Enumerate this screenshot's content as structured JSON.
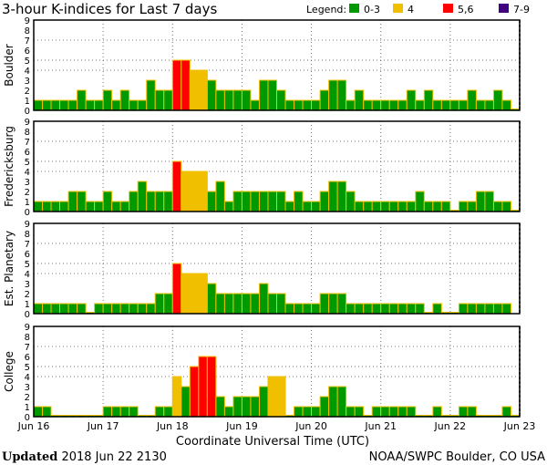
{
  "chart_data": {
    "type": "bar",
    "title": "3-hour K-indices for Last 7 days",
    "xlabel": "Coordinate Universal Time (UTC)",
    "ylim": [
      0,
      9
    ],
    "yticks": [
      "0",
      "1",
      "2",
      "3",
      "4",
      "5",
      "6",
      "7",
      "8",
      "9"
    ],
    "xticks": [
      "Jun 16",
      "Jun 17",
      "Jun 18",
      "Jun 19",
      "Jun 20",
      "Jun 21",
      "Jun 22",
      "Jun 23"
    ],
    "bars_per_day": 8,
    "grid_levels": [
      4,
      5,
      7
    ],
    "legend": {
      "label": "Legend:",
      "placement": "top-right",
      "items": [
        {
          "label": "0-3",
          "color": "#009900"
        },
        {
          "label": "4",
          "color": "#f0c000"
        },
        {
          "label": "5,6",
          "color": "#ff0000"
        },
        {
          "label": "7-9",
          "color": "#400080"
        }
      ]
    },
    "outline_color": "#f0c000",
    "series": [
      {
        "name": "Boulder",
        "values": [
          1,
          1,
          1,
          1,
          1,
          2,
          1,
          1,
          2,
          1,
          2,
          1,
          1,
          3,
          2,
          2,
          5,
          5,
          4,
          4,
          3,
          2,
          2,
          2,
          2,
          1,
          3,
          3,
          2,
          1,
          1,
          1,
          1,
          2,
          3,
          3,
          1,
          2,
          1,
          1,
          1,
          1,
          1,
          2,
          1,
          2,
          1,
          1,
          1,
          1,
          2,
          1,
          1,
          2,
          1,
          0
        ]
      },
      {
        "name": "Fredericksburg",
        "values": [
          1,
          1,
          1,
          1,
          2,
          2,
          1,
          1,
          2,
          1,
          1,
          2,
          3,
          2,
          2,
          2,
          5,
          4,
          4,
          4,
          2,
          3,
          1,
          2,
          2,
          2,
          2,
          2,
          2,
          1,
          2,
          1,
          1,
          2,
          3,
          3,
          2,
          1,
          1,
          1,
          1,
          1,
          1,
          1,
          2,
          1,
          1,
          1,
          0,
          1,
          1,
          2,
          2,
          1,
          1,
          0
        ]
      },
      {
        "name": "Est. Planetary",
        "values": [
          1,
          1,
          1,
          1,
          1,
          1,
          0,
          1,
          1,
          1,
          1,
          1,
          1,
          1,
          2,
          2,
          5,
          4,
          4,
          4,
          3,
          2,
          2,
          2,
          2,
          2,
          3,
          2,
          2,
          1,
          1,
          1,
          1,
          2,
          2,
          2,
          1,
          1,
          1,
          1,
          1,
          1,
          1,
          1,
          1,
          0,
          1,
          0,
          0,
          1,
          1,
          1,
          1,
          1,
          1,
          null
        ]
      },
      {
        "name": "College",
        "values": [
          1,
          1,
          0,
          0,
          0,
          0,
          0,
          0,
          1,
          1,
          1,
          1,
          0,
          0,
          1,
          1,
          4,
          3,
          5,
          6,
          6,
          2,
          1,
          2,
          2,
          2,
          3,
          4,
          4,
          0,
          1,
          1,
          1,
          2,
          3,
          3,
          1,
          1,
          0,
          1,
          1,
          1,
          1,
          1,
          0,
          0,
          1,
          0,
          0,
          1,
          1,
          0,
          0,
          0,
          1,
          0
        ]
      }
    ]
  },
  "footer": {
    "updated_label": "Updated",
    "updated_value": "2018 Jun 22 2130",
    "source": "NOAA/SWPC Boulder, CO USA"
  }
}
